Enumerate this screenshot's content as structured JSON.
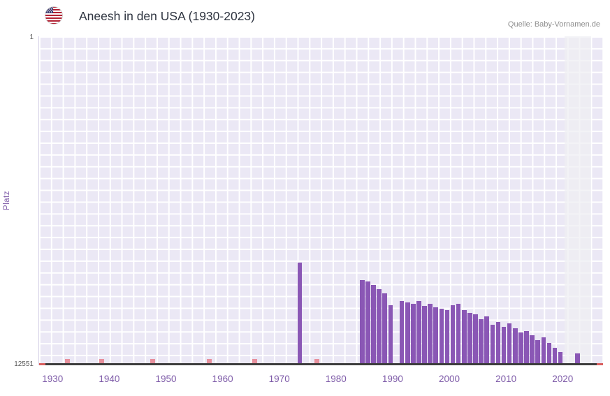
{
  "header": {
    "source": "Quelle: Baby-Vornamen.de",
    "flag_icon": "us-flag"
  },
  "chart_data": {
    "type": "bar",
    "title": "Aneesh in den USA (1930-2023)",
    "ylabel": "Platz",
    "y_axis": {
      "top_label": "1",
      "bottom_label": "12551",
      "min": 1,
      "max": 12551,
      "inverted": true
    },
    "x_ticks": [
      1930,
      1940,
      1950,
      1960,
      1970,
      1980,
      1990,
      2000,
      2010,
      2020
    ],
    "x_range": [
      1927.5,
      2027
    ],
    "highlight_band": [
      2020.2,
      2024.9
    ],
    "grid": true,
    "legend": false,
    "bars": [
      {
        "year": 1973,
        "rank": 8700
      },
      {
        "year": 1984,
        "rank": 9350
      },
      {
        "year": 1985,
        "rank": 9400
      },
      {
        "year": 1986,
        "rank": 9550
      },
      {
        "year": 1987,
        "rank": 9700
      },
      {
        "year": 1988,
        "rank": 9850
      },
      {
        "year": 1989,
        "rank": 10300
      },
      {
        "year": 1991,
        "rank": 10150
      },
      {
        "year": 1992,
        "rank": 10200
      },
      {
        "year": 1993,
        "rank": 10250
      },
      {
        "year": 1994,
        "rank": 10150
      },
      {
        "year": 1995,
        "rank": 10350
      },
      {
        "year": 1996,
        "rank": 10250
      },
      {
        "year": 1997,
        "rank": 10400
      },
      {
        "year": 1998,
        "rank": 10450
      },
      {
        "year": 1999,
        "rank": 10500
      },
      {
        "year": 2000,
        "rank": 10300
      },
      {
        "year": 2001,
        "rank": 10250
      },
      {
        "year": 2002,
        "rank": 10500
      },
      {
        "year": 2003,
        "rank": 10600
      },
      {
        "year": 2004,
        "rank": 10650
      },
      {
        "year": 2005,
        "rank": 10850
      },
      {
        "year": 2006,
        "rank": 10750
      },
      {
        "year": 2007,
        "rank": 11050
      },
      {
        "year": 2008,
        "rank": 10950
      },
      {
        "year": 2009,
        "rank": 11150
      },
      {
        "year": 2010,
        "rank": 11000
      },
      {
        "year": 2011,
        "rank": 11200
      },
      {
        "year": 2012,
        "rank": 11350
      },
      {
        "year": 2013,
        "rank": 11300
      },
      {
        "year": 2014,
        "rank": 11450
      },
      {
        "year": 2015,
        "rank": 11650
      },
      {
        "year": 2016,
        "rank": 11550
      },
      {
        "year": 2017,
        "rank": 11750
      },
      {
        "year": 2018,
        "rank": 11950
      },
      {
        "year": 2019,
        "rank": 12100
      },
      {
        "year": 2022,
        "rank": 12150
      }
    ],
    "no_data_years": [
      1932,
      1938,
      1947,
      1957,
      1965,
      1976
    ],
    "colors": {
      "bar": "#8a57b5",
      "plot_bg": "#ebe8f5",
      "grid": "#ffffff",
      "axis_labels": "#7e5ba8",
      "no_data": "#e5737f",
      "baseline": "#3d3d3d",
      "axis_end_marker": "#d95f5f"
    }
  }
}
